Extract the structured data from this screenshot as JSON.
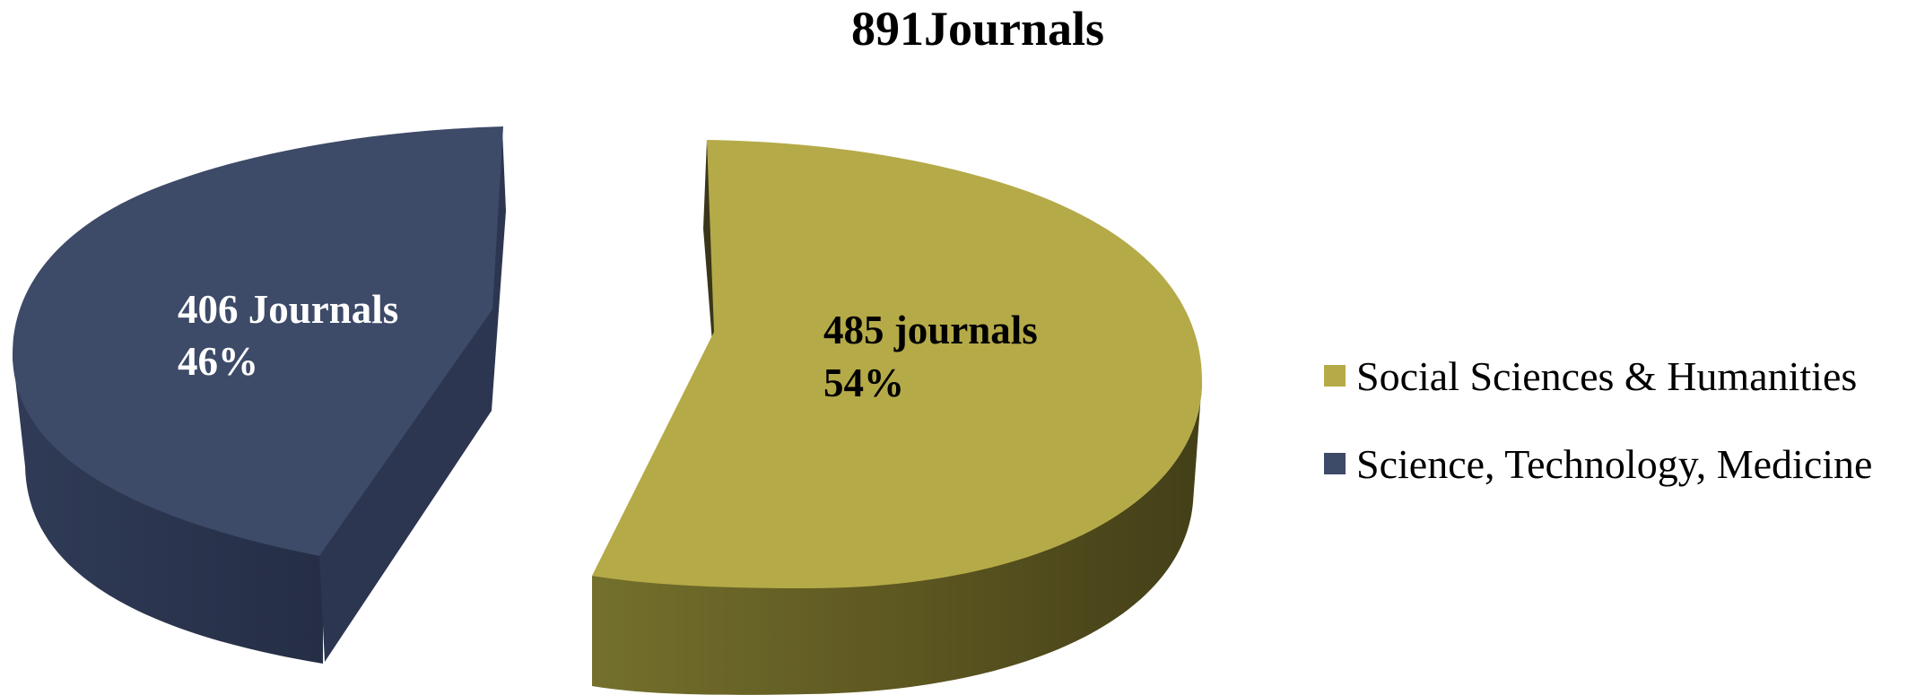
{
  "chart_data": {
    "type": "pie",
    "title": "891Journals",
    "total": 891,
    "three_d": true,
    "exploded": true,
    "series": [
      {
        "name": "Social Sciences & Humanities",
        "value": 485,
        "percent": 54,
        "label_line1": "485 journals",
        "label_line2": "54%",
        "color": "#b5aa48",
        "side_color": "#5f5822",
        "label_color": "#000000"
      },
      {
        "name": "Science, Technology, Medicine",
        "value": 406,
        "percent": 46,
        "label_line1": "406 Journals",
        "label_line2": "46%",
        "color": "#3d4a68",
        "side_color": "#2c3650",
        "label_color": "#ffffff"
      }
    ],
    "legend": {
      "position": "right",
      "items": [
        "Social Sciences & Humanities",
        "Science, Technology, Medicine"
      ]
    }
  }
}
